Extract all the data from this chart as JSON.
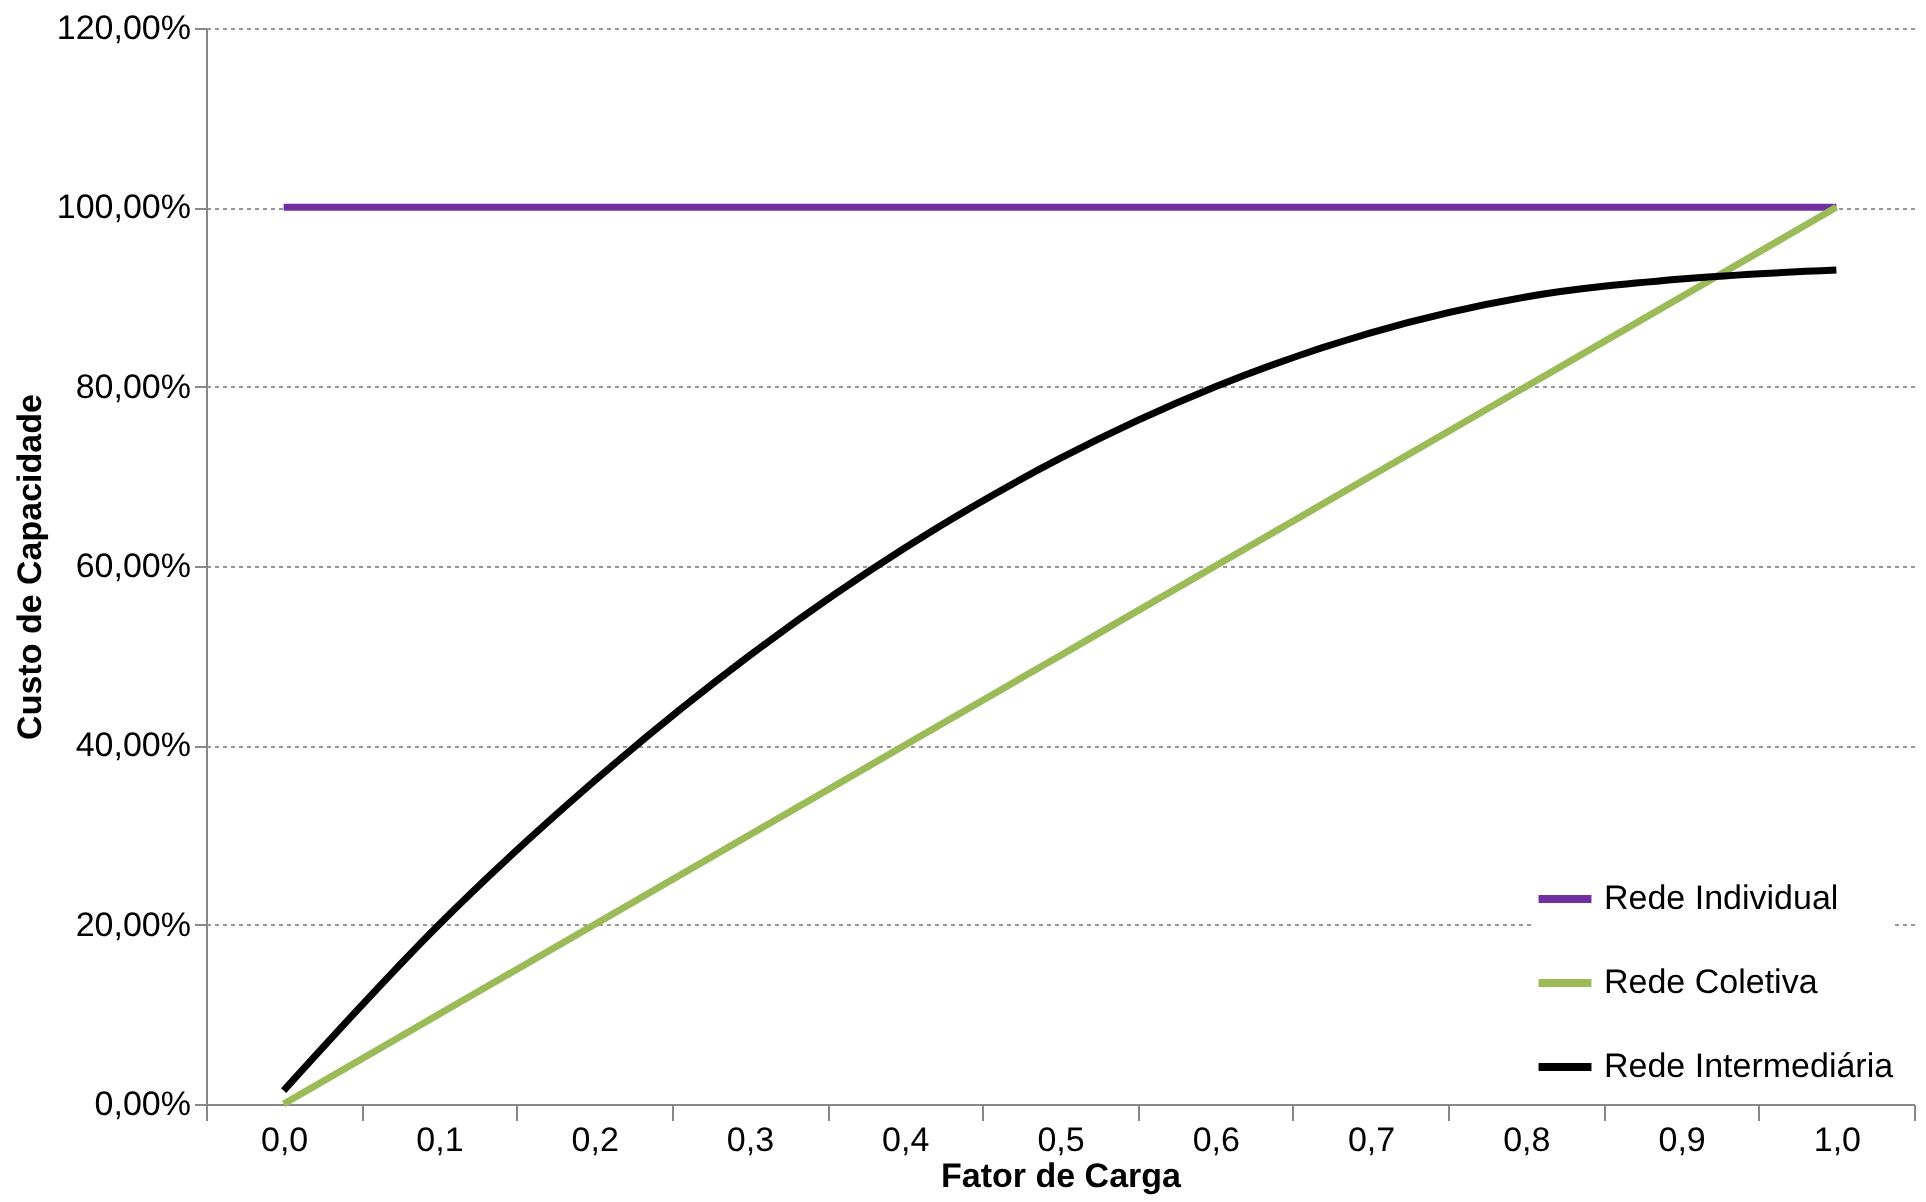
{
  "chart_data": {
    "type": "line",
    "xlabel": "Fator de Carga",
    "ylabel": "Custo de Capacidade",
    "categories": [
      "0,0",
      "0,1",
      "0,2",
      "0,3",
      "0,4",
      "0,5",
      "0,6",
      "0,7",
      "0,8",
      "0,9",
      "1,0"
    ],
    "series": [
      {
        "name": "Rede Individual",
        "color": "#7030a0",
        "values": [
          100,
          100,
          100,
          100,
          100,
          100,
          100,
          100,
          100,
          100,
          100
        ]
      },
      {
        "name": "Rede Coletiva",
        "color": "#9bbb59",
        "values": [
          0,
          10,
          20,
          30,
          40,
          50,
          60,
          70,
          80,
          90,
          100
        ]
      },
      {
        "name": "Rede Intermediária",
        "color": "#000000",
        "values": [
          1.5,
          20,
          36,
          50,
          62,
          72,
          80,
          86,
          90,
          92,
          93
        ]
      }
    ],
    "ylim": [
      0,
      120
    ],
    "yticks": [
      {
        "value": 0,
        "label": "0,00%"
      },
      {
        "value": 20,
        "label": "20,00%"
      },
      {
        "value": 40,
        "label": "40,00%"
      },
      {
        "value": 60,
        "label": "60,00%"
      },
      {
        "value": 80,
        "label": "80,00%"
      },
      {
        "value": 100,
        "label": "100,00%"
      },
      {
        "value": 120,
        "label": "120,00%"
      }
    ],
    "grid": "y",
    "legend": "bottom right",
    "marker": "none",
    "line_style": "solid"
  }
}
